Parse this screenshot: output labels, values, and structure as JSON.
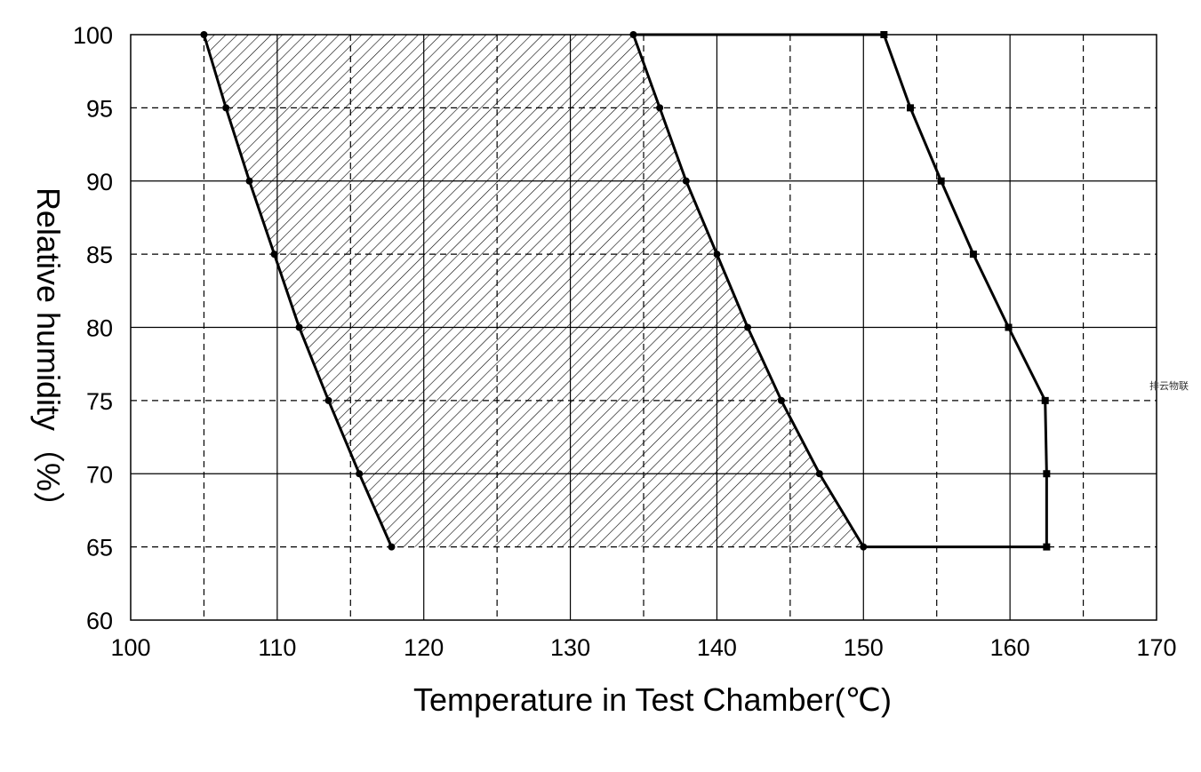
{
  "watermark": "排云物联",
  "chart_data": {
    "type": "line",
    "xlabel": "Temperature in Test Chamber(℃)",
    "ylabel": "Relative humidity（%）",
    "xlim": [
      100,
      170
    ],
    "ylim": [
      60,
      100
    ],
    "x_ticks": [
      100,
      110,
      120,
      130,
      140,
      150,
      160,
      170
    ],
    "y_ticks": [
      60,
      65,
      70,
      75,
      80,
      85,
      90,
      95,
      100
    ],
    "grid": {
      "solid_x": [
        110,
        120,
        130,
        140,
        150,
        160
      ],
      "dashed_x": [
        105,
        115,
        125,
        135,
        145,
        155,
        165
      ],
      "solid_y": [
        70,
        80,
        90
      ],
      "dashed_y": [
        65,
        75,
        85,
        95
      ]
    },
    "hatched_region": {
      "fill": "diagonal hatch",
      "left_boundary": [
        {
          "x": 105.0,
          "y": 100
        },
        {
          "x": 106.5,
          "y": 95
        },
        {
          "x": 108.1,
          "y": 90
        },
        {
          "x": 109.8,
          "y": 85
        },
        {
          "x": 111.5,
          "y": 80
        },
        {
          "x": 113.5,
          "y": 75
        },
        {
          "x": 115.6,
          "y": 70
        },
        {
          "x": 117.8,
          "y": 65
        }
      ],
      "right_boundary": [
        {
          "x": 134.3,
          "y": 100
        },
        {
          "x": 136.1,
          "y": 95
        },
        {
          "x": 137.9,
          "y": 90
        },
        {
          "x": 140.0,
          "y": 85
        },
        {
          "x": 142.1,
          "y": 80
        },
        {
          "x": 144.4,
          "y": 75
        },
        {
          "x": 147.0,
          "y": 70
        },
        {
          "x": 150.0,
          "y": 65
        }
      ]
    },
    "limit_curve": {
      "marker": "square",
      "points": [
        {
          "x": 151.4,
          "y": 100
        },
        {
          "x": 153.2,
          "y": 95
        },
        {
          "x": 155.3,
          "y": 90
        },
        {
          "x": 157.5,
          "y": 85
        },
        {
          "x": 159.9,
          "y": 80
        },
        {
          "x": 162.4,
          "y": 75
        },
        {
          "x": 162.5,
          "y": 70
        },
        {
          "x": 162.5,
          "y": 65
        }
      ]
    },
    "connectors": [
      {
        "from": {
          "x": 134.3,
          "y": 100
        },
        "to": {
          "x": 151.4,
          "y": 100
        }
      },
      {
        "from": {
          "x": 150.0,
          "y": 65
        },
        "to": {
          "x": 162.5,
          "y": 65
        }
      }
    ]
  }
}
